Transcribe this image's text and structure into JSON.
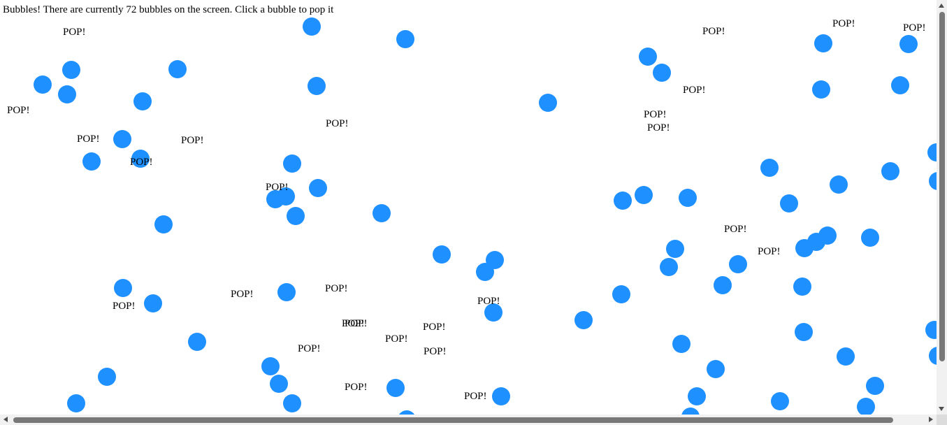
{
  "status": {
    "text": "Bubbles! There are currently 72 bubbles on the screen. Click a bubble to pop it"
  },
  "bubble_color": "#1e90ff",
  "bubble_count": 72,
  "pop_label": "POP!"
}
